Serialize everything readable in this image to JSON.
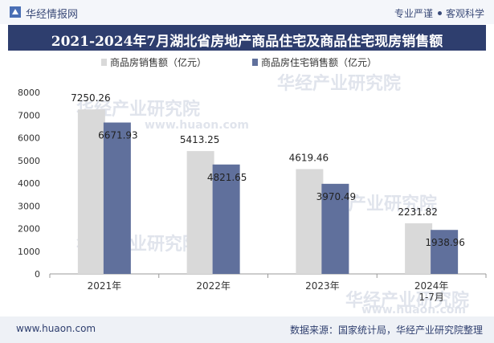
{
  "header": {
    "logo_text": "华经情报网",
    "slogan_left": "专业严谨",
    "slogan_right": "客观科学"
  },
  "title": "2021-2024年7月湖北省房地产商品住宅及商品住宅现房销售额",
  "legend": {
    "series1": "商品房销售额（亿元）",
    "series2": "商品房住宅销售额（亿元）"
  },
  "watermark": {
    "cn": "华经产业研究院",
    "en": "www.huaon.com"
  },
  "footer": {
    "site": "www.huaon.com",
    "source": "数据来源：国家统计局，华经产业研究院整理"
  },
  "colors": {
    "series1": "#d9d9d9",
    "series2": "#60709c",
    "title_bg": "#2e3e6e"
  },
  "chart_data": {
    "type": "bar",
    "categories": [
      "2021年",
      "2022年",
      "2023年",
      "2024年\n1-7月"
    ],
    "series": [
      {
        "name": "商品房销售额（亿元）",
        "values": [
          7250.26,
          5413.25,
          4619.46,
          2231.82
        ]
      },
      {
        "name": "商品房住宅销售额（亿元）",
        "values": [
          6671.93,
          4821.65,
          3970.49,
          1938.96
        ]
      }
    ],
    "value_labels": [
      [
        "7250.26",
        "5413.25",
        "4619.46",
        "2231.82"
      ],
      [
        "6671.93",
        "4821.65",
        "3970.49",
        "1938.96"
      ]
    ],
    "ylim": [
      0,
      8000
    ],
    "yticks": [
      "0",
      "1000",
      "2000",
      "3000",
      "4000",
      "5000",
      "6000",
      "7000",
      "8000"
    ],
    "ytick_values": [
      0,
      1000,
      2000,
      3000,
      4000,
      5000,
      6000,
      7000,
      8000
    ],
    "legend_position": "top"
  }
}
